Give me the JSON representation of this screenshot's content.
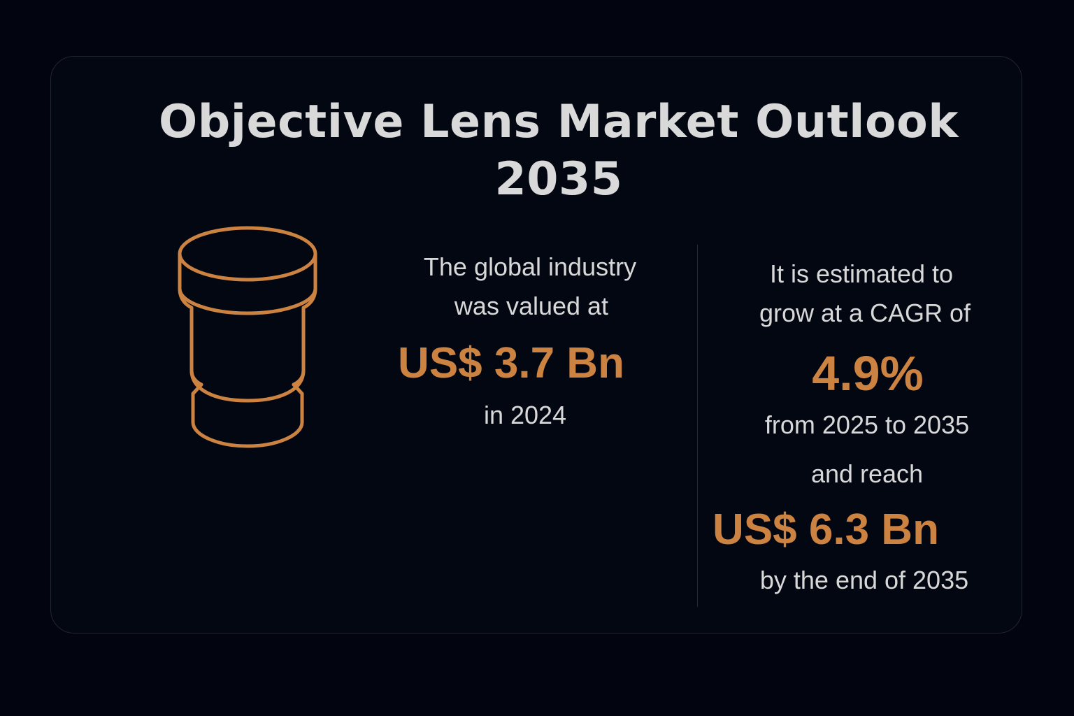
{
  "title": {
    "line1": "Objective Lens Market Outlook",
    "line2": "2035"
  },
  "icon": "objective-lens-icon",
  "colors": {
    "background": "#020510",
    "card": "#030712",
    "accent": "#cc8241",
    "text": "#d8d8d8"
  },
  "left_panel": {
    "intro_line1": "The global industry",
    "intro_line2": "was valued at",
    "value": "US$ 3.7 Bn",
    "year_text": "in 2024"
  },
  "right_panel": {
    "intro_line1": "It is estimated to",
    "intro_line2": "grow at a CAGR of",
    "cagr": "4.9%",
    "period_text": "from 2025 to 2035",
    "reach_text": "and reach",
    "value": "US$ 6.3 Bn",
    "end_text": "by the end of 2035"
  }
}
